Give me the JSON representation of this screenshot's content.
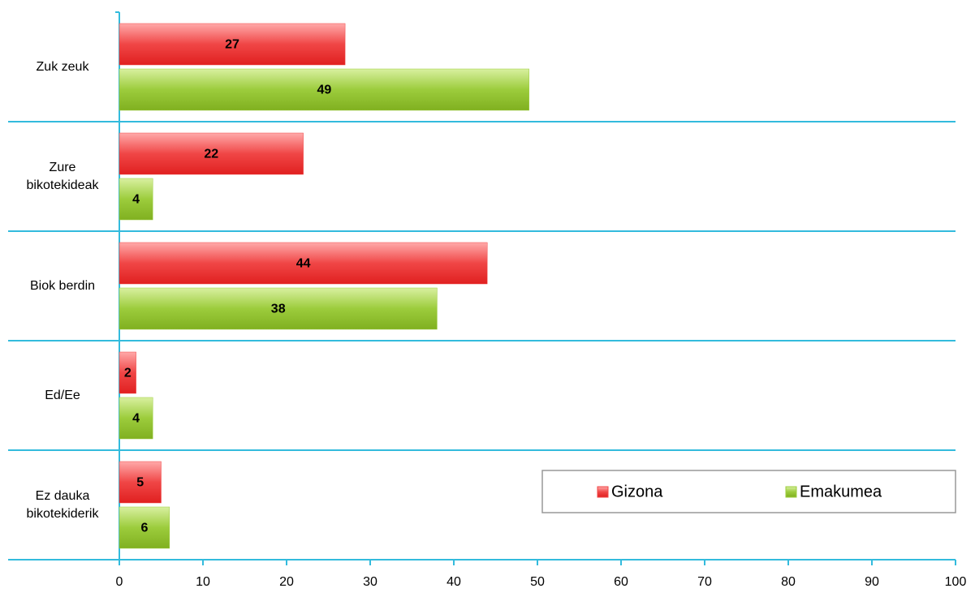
{
  "chart_data": {
    "type": "bar",
    "orientation": "horizontal",
    "categories": [
      "Zuk zeuk",
      "Zure bikotekideak",
      "Biok berdin",
      "Ed/Ee",
      "Ez dauka bikotekiderik"
    ],
    "series": [
      {
        "name": "Gizona",
        "color": "#f04646",
        "values": [
          27,
          22,
          44,
          2,
          5
        ]
      },
      {
        "name": "Emakumea",
        "color": "#9ccc3c",
        "values": [
          49,
          4,
          38,
          4,
          6
        ]
      }
    ],
    "xlim": [
      0,
      100
    ],
    "xticks": [
      0,
      10,
      20,
      30,
      40,
      50,
      60,
      70,
      80,
      90,
      100
    ],
    "legend": "lower right"
  }
}
